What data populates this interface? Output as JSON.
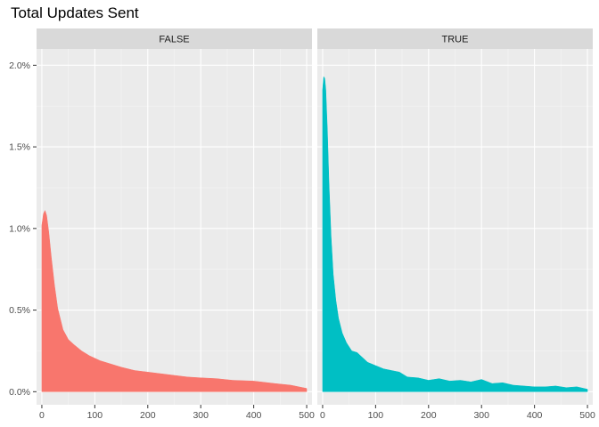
{
  "chart_data": {
    "type": "area",
    "title": "Total Updates Sent",
    "xlabel": "",
    "ylabel": "",
    "xlim": [
      -10,
      510
    ],
    "ylim": [
      -0.0008,
      0.021
    ],
    "x_ticks": [
      0,
      100,
      200,
      300,
      400,
      500
    ],
    "x_tick_labels": [
      "0",
      "100",
      "200",
      "300",
      "400",
      "500"
    ],
    "y_ticks": [
      0,
      0.005,
      0.01,
      0.015,
      0.02
    ],
    "y_tick_labels": [
      "0.0%",
      "0.5%",
      "1.0%",
      "1.5%",
      "2.0%"
    ],
    "grid": true,
    "legend": "none",
    "panels": [
      {
        "label": "FALSE",
        "color": "#F8766D",
        "x": [
          0,
          3,
          6,
          9,
          13,
          18,
          24,
          30,
          40,
          50,
          60,
          75,
          90,
          110,
          130,
          150,
          175,
          200,
          225,
          250,
          275,
          300,
          330,
          360,
          400,
          440,
          470,
          500
        ],
        "y": [
          0.0102,
          0.0109,
          0.0111,
          0.0108,
          0.0098,
          0.0082,
          0.0065,
          0.0051,
          0.0038,
          0.0032,
          0.0029,
          0.0025,
          0.0022,
          0.0019,
          0.0017,
          0.0015,
          0.0013,
          0.0012,
          0.0011,
          0.001,
          0.0009,
          0.00085,
          0.0008,
          0.0007,
          0.00065,
          0.0005,
          0.0004,
          0.0002
        ]
      },
      {
        "label": "TRUE",
        "color": "#00BFC4",
        "x": [
          0,
          2,
          4,
          6,
          9,
          12,
          16,
          20,
          25,
          30,
          37,
          45,
          55,
          65,
          75,
          85,
          100,
          115,
          130,
          145,
          160,
          180,
          200,
          220,
          240,
          260,
          280,
          300,
          320,
          340,
          360,
          380,
          400,
          420,
          440,
          460,
          480,
          500
        ],
        "y": [
          0.0185,
          0.0193,
          0.0192,
          0.0185,
          0.016,
          0.0128,
          0.0095,
          0.0072,
          0.0056,
          0.0045,
          0.0036,
          0.003,
          0.0025,
          0.0024,
          0.0021,
          0.0018,
          0.0016,
          0.0014,
          0.0013,
          0.0012,
          0.0009,
          0.00085,
          0.0007,
          0.0008,
          0.00065,
          0.0007,
          0.0006,
          0.00075,
          0.0005,
          0.00055,
          0.0004,
          0.00035,
          0.0003,
          0.0003,
          0.00035,
          0.00025,
          0.0003,
          0.00015
        ]
      }
    ]
  }
}
